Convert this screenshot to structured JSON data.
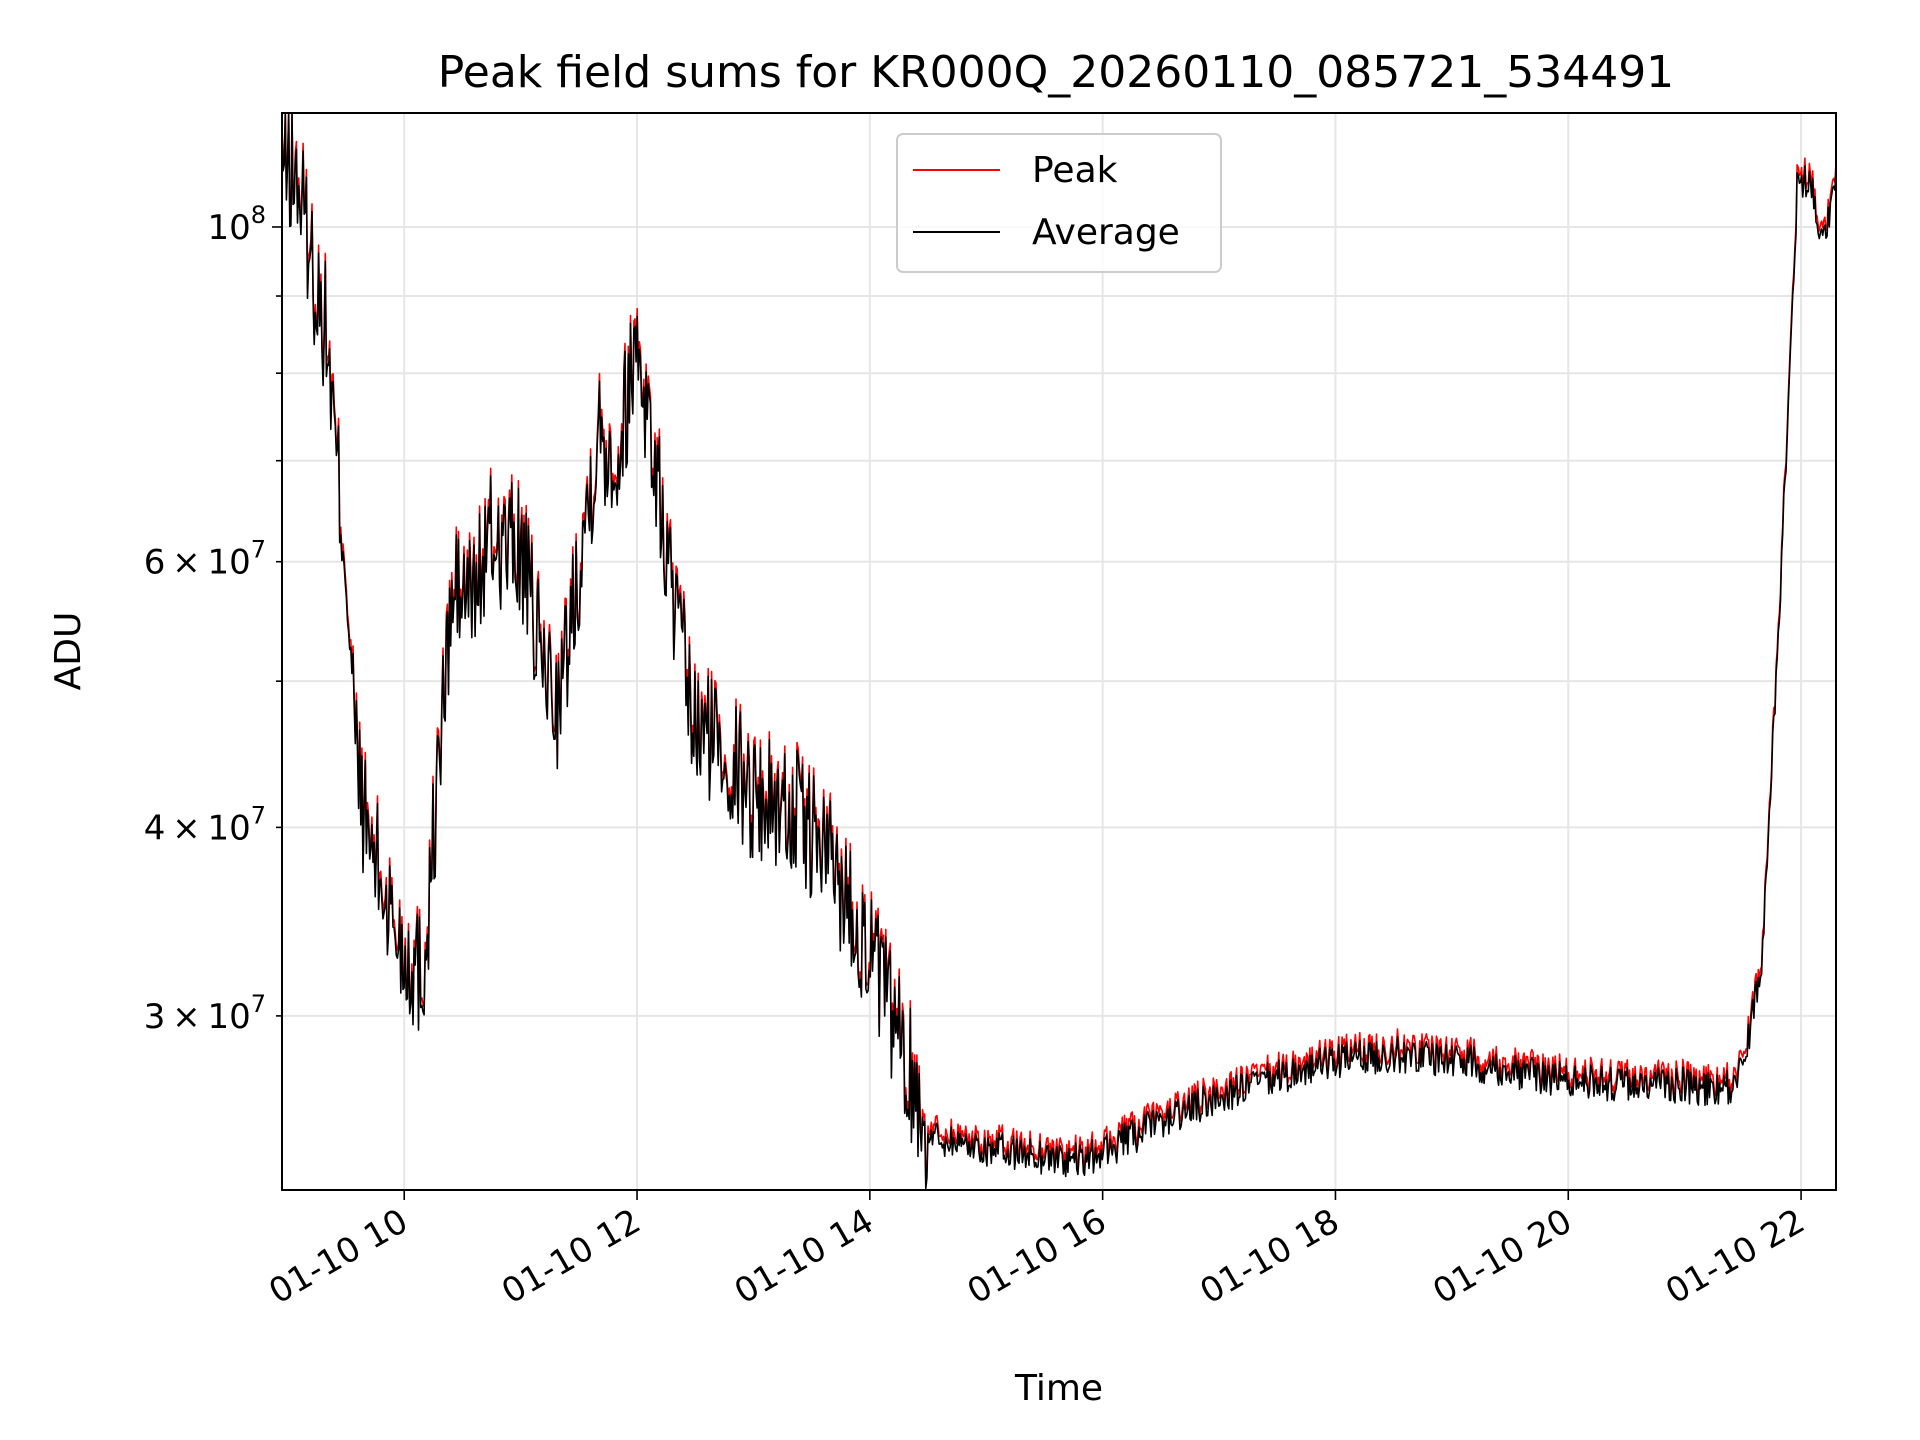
{
  "chart_data": {
    "type": "line",
    "title": "Peak field sums for KR000Q_20260110_085721_534491",
    "xlabel": "Time",
    "ylabel": "ADU",
    "x_axis": {
      "type": "time",
      "range": [
        "2026-01-10 08:57",
        "2026-01-10 22:18"
      ],
      "ticks": [
        {
          "value": "2026-01-10 10:00",
          "label": "01-10 10"
        },
        {
          "value": "2026-01-10 12:00",
          "label": "01-10 12"
        },
        {
          "value": "2026-01-10 14:00",
          "label": "01-10 14"
        },
        {
          "value": "2026-01-10 16:00",
          "label": "01-10 16"
        },
        {
          "value": "2026-01-10 18:00",
          "label": "01-10 18"
        },
        {
          "value": "2026-01-10 20:00",
          "label": "01-10 20"
        },
        {
          "value": "2026-01-10 22:00",
          "label": "01-10 22"
        }
      ]
    },
    "y_axis": {
      "scale": "log",
      "range": [
        23000000,
        119000000
      ],
      "major_ticks": [
        {
          "value": 100000000,
          "label": "10^8"
        }
      ],
      "minor_ticks": [
        {
          "value": 30000000,
          "label": "3×10^7"
        },
        {
          "value": 40000000,
          "label": "4×10^7"
        },
        {
          "value": 60000000,
          "label": "6×10^7"
        },
        {
          "value": 50000000,
          "label": ""
        },
        {
          "value": 70000000,
          "label": ""
        },
        {
          "value": 80000000,
          "label": ""
        },
        {
          "value": 90000000,
          "label": ""
        }
      ]
    },
    "grid": true,
    "legend": "upper center",
    "series": [
      {
        "name": "Peak",
        "color": "#ff0000",
        "offset_ratio": 1.012
      },
      {
        "name": "Average",
        "color": "#000000",
        "offset_ratio": 1.0
      }
    ],
    "x": [
      "2026-01-10 08:57",
      "2026-01-10 09:05",
      "2026-01-10 09:10",
      "2026-01-10 09:15",
      "2026-01-10 09:20",
      "2026-01-10 09:25",
      "2026-01-10 09:30",
      "2026-01-10 09:35",
      "2026-01-10 09:40",
      "2026-01-10 09:45",
      "2026-01-10 09:50",
      "2026-01-10 10:00",
      "2026-01-10 10:10",
      "2026-01-10 10:20",
      "2026-01-10 10:25",
      "2026-01-10 10:35",
      "2026-01-10 10:45",
      "2026-01-10 11:00",
      "2026-01-10 11:10",
      "2026-01-10 11:20",
      "2026-01-10 11:30",
      "2026-01-10 11:40",
      "2026-01-10 11:50",
      "2026-01-10 12:00",
      "2026-01-10 12:10",
      "2026-01-10 12:20",
      "2026-01-10 12:30",
      "2026-01-10 12:40",
      "2026-01-10 13:00",
      "2026-01-10 13:20",
      "2026-01-10 13:40",
      "2026-01-10 14:00",
      "2026-01-10 14:15",
      "2026-01-10 14:30",
      "2026-01-10 15:00",
      "2026-01-10 15:30",
      "2026-01-10 15:50",
      "2026-01-10 16:30",
      "2026-01-10 17:00",
      "2026-01-10 17:30",
      "2026-01-10 18:00",
      "2026-01-10 18:30",
      "2026-01-10 19:00",
      "2026-01-10 19:30",
      "2026-01-10 20:00",
      "2026-01-10 20:30",
      "2026-01-10 21:00",
      "2026-01-10 21:20",
      "2026-01-10 21:30",
      "2026-01-10 21:40",
      "2026-01-10 21:50",
      "2026-01-10 21:58",
      "2026-01-10 22:05",
      "2026-01-10 22:10",
      "2026-01-10 22:18"
    ],
    "values": [
      111000000,
      107000000,
      99000000,
      90000000,
      85000000,
      70000000,
      60000000,
      45000000,
      40000000,
      38000000,
      36000000,
      33000000,
      32000000,
      48000000,
      57000000,
      57000000,
      62000000,
      61000000,
      52000000,
      48000000,
      60000000,
      73000000,
      70000000,
      85000000,
      68000000,
      55000000,
      46000000,
      46000000,
      42000000,
      41000000,
      38000000,
      33000000,
      29000000,
      25000000,
      24500000,
      24200000,
      24000000,
      25500000,
      26500000,
      27300000,
      28000000,
      28300000,
      28100000,
      27600000,
      27200000,
      27000000,
      27000000,
      26700000,
      27500000,
      33000000,
      60000000,
      106000000,
      108000000,
      98000000,
      106000000
    ]
  }
}
